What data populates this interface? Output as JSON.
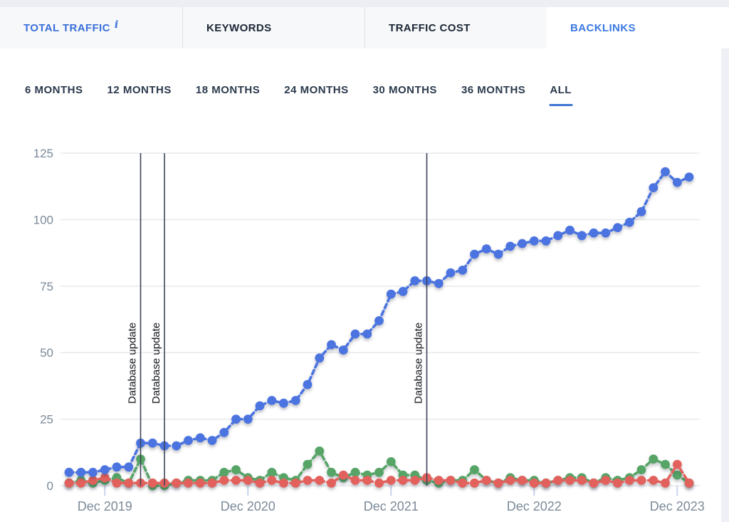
{
  "tabs": {
    "items": [
      {
        "label": "TOTAL TRAFFIC",
        "active": false,
        "info_icon": "i"
      },
      {
        "label": "KEYWORDS",
        "active": false
      },
      {
        "label": "TRAFFIC COST",
        "active": false
      },
      {
        "label": "BACKLINKS",
        "active": true
      }
    ]
  },
  "period_selector": {
    "options": [
      "6 MONTHS",
      "12 MONTHS",
      "18 MONTHS",
      "24 MONTHS",
      "30 MONTHS",
      "36 MONTHS",
      "ALL"
    ],
    "selected": "ALL"
  },
  "chart_data": {
    "type": "line",
    "points_count": 53,
    "ylim": [
      0,
      125
    ],
    "grid": true,
    "y_ticks": [
      0,
      25,
      50,
      75,
      100,
      125
    ],
    "x_ticks": [
      {
        "index": 3,
        "label": "Dec 2019"
      },
      {
        "index": 15,
        "label": "Dec 2020"
      },
      {
        "index": 27,
        "label": "Dec 2021"
      },
      {
        "index": 39,
        "label": "Dec 2022"
      },
      {
        "index": 51,
        "label": "Dec 2023"
      }
    ],
    "markers": [
      {
        "index": 6,
        "label": "Database update"
      },
      {
        "index": 8,
        "label": "Database update"
      },
      {
        "index": 30,
        "label": "Database update"
      }
    ],
    "series": [
      {
        "name": "green",
        "color": "#56a567",
        "values": [
          1,
          2,
          1,
          2,
          3,
          1,
          10,
          0,
          0,
          1,
          2,
          2,
          2,
          5,
          6,
          3,
          2,
          5,
          3,
          2,
          8,
          13,
          5,
          3,
          5,
          4,
          5,
          9,
          4,
          4,
          2,
          1,
          2,
          2,
          6,
          2,
          1,
          3,
          2,
          2,
          1,
          2,
          3,
          3,
          1,
          3,
          2,
          3,
          6,
          10,
          8,
          4,
          1
        ]
      },
      {
        "name": "red",
        "color": "#e2615c",
        "values": [
          1,
          1,
          2,
          3,
          1,
          1,
          1,
          1,
          1,
          1,
          1,
          1,
          1,
          2,
          2,
          2,
          1,
          2,
          1,
          1,
          2,
          2,
          1,
          4,
          2,
          2,
          1,
          2,
          2,
          2,
          3,
          2,
          2,
          1,
          1,
          2,
          1,
          2,
          2,
          1,
          1,
          2,
          2,
          2,
          1,
          2,
          1,
          2,
          2,
          2,
          1,
          8,
          1
        ]
      },
      {
        "name": "blue",
        "color": "#4b74e0",
        "values": [
          5,
          5,
          5,
          6,
          7,
          7,
          16,
          16,
          15,
          15,
          17,
          18,
          17,
          20,
          25,
          25,
          30,
          32,
          31,
          32,
          38,
          48,
          53,
          51,
          57,
          57,
          62,
          72,
          73,
          77,
          77,
          76,
          80,
          81,
          87,
          89,
          87,
          90,
          91,
          92,
          92,
          94,
          96,
          94,
          95,
          95,
          97,
          99,
          103,
          112,
          118,
          114,
          116
        ]
      }
    ]
  },
  "colors": {
    "accent_blue": "#3a78e2",
    "marker_line": "#3e4458",
    "grid_line": "#e9eaee",
    "axis_text": "#7b8a99",
    "tick_mark": "#c9d2ec",
    "tab_bar_bg": "#f7f8fa",
    "top_strip_bg": "#eceef4",
    "underline": "#3f76d2"
  }
}
